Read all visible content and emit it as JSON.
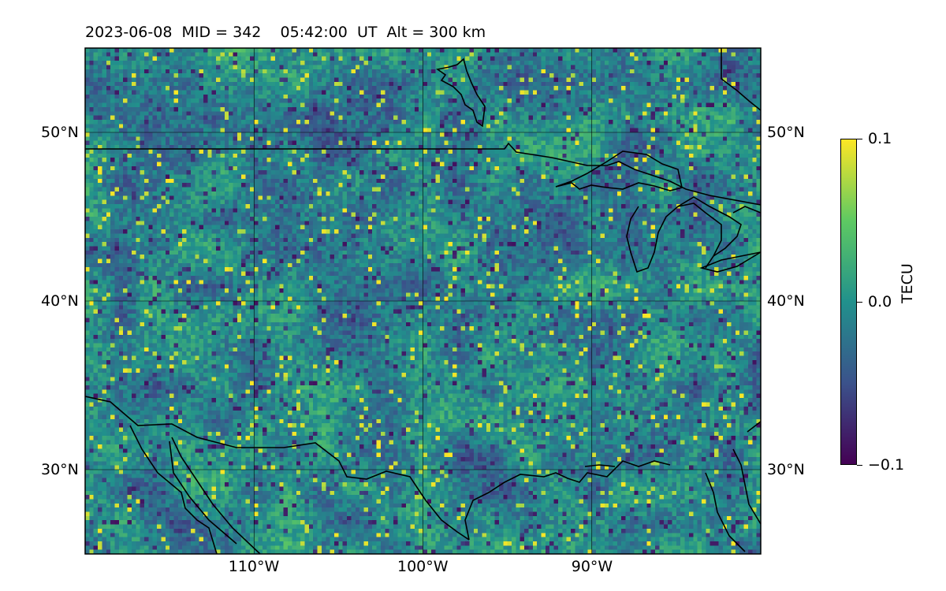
{
  "title": "2023-06-08  MID = 342    05:42:00  UT  Alt = 300 km",
  "map": {
    "projection": "plate-carree",
    "lon_range": [
      -120,
      -80
    ],
    "lat_range": [
      25,
      55
    ],
    "lon_ticks": [
      {
        "value": -110,
        "label": "110°W"
      },
      {
        "value": -100,
        "label": "100°W"
      },
      {
        "value": -90,
        "label": "90°W"
      }
    ],
    "lat_ticks": [
      {
        "value": 30,
        "label": "30°N"
      },
      {
        "value": 40,
        "label": "40°N"
      },
      {
        "value": 50,
        "label": "50°N"
      }
    ],
    "gridlines": true,
    "field": "TEC perturbation (speckled, mostly near 0)",
    "coastlines_and_borders": true
  },
  "colorbar": {
    "label": "TECU",
    "colormap": "viridis",
    "min": -0.1,
    "max": 0.1,
    "ticks": [
      {
        "value": 0.1,
        "label": "0.1"
      },
      {
        "value": 0.0,
        "label": "0.0"
      },
      {
        "value": -0.1,
        "label": "−0.1"
      }
    ]
  }
}
